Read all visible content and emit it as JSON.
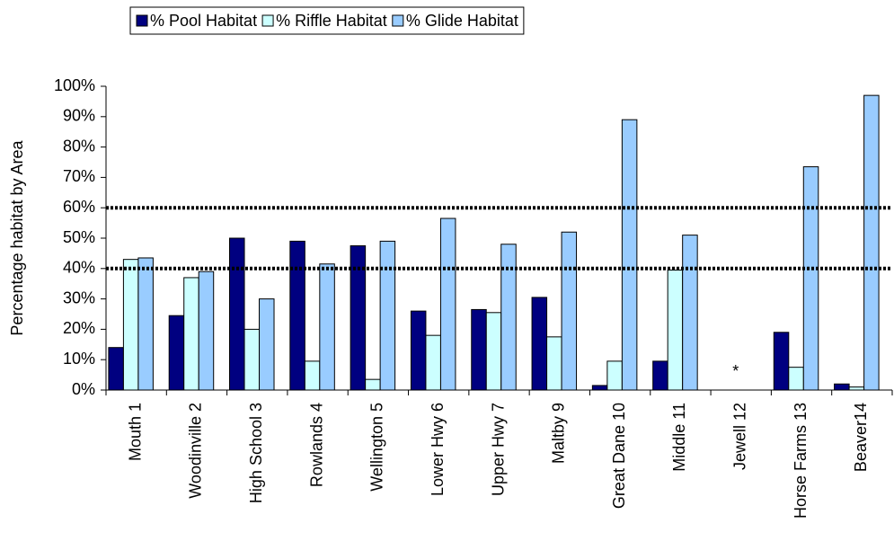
{
  "chart_data": {
    "type": "bar",
    "y_label": "Percentage habitat by Area",
    "categories": [
      "Mouth 1",
      "Woodinville 2",
      "High School 3",
      "Rowlands 4",
      "Wellington 5",
      "Lower Hwy 6",
      "Upper Hwy 7",
      "Maltby 9",
      "Great Dane 10",
      "Middle 11",
      "Jewell 12",
      "Horse Farms 13",
      "Beaver14"
    ],
    "series": [
      {
        "name": "% Pool Habitat",
        "color": "#000080",
        "values": [
          14,
          24.5,
          50,
          49,
          47.5,
          26,
          26.5,
          30.5,
          1.5,
          9.5,
          null,
          19,
          2
        ]
      },
      {
        "name": "% Riffle Habitat",
        "color": "#ccffff",
        "values": [
          43,
          37,
          20,
          9.5,
          3.5,
          18,
          25.5,
          17.5,
          9.5,
          39.5,
          null,
          7.5,
          1
        ]
      },
      {
        "name": "% Glide Habitat",
        "color": "#99ccff",
        "values": [
          43.5,
          39,
          30,
          41.5,
          49,
          56.5,
          48,
          52,
          89,
          51,
          null,
          73.5,
          97
        ]
      }
    ],
    "ylim": [
      0,
      100
    ],
    "yticks": [
      {
        "value": 0,
        "label": "0%"
      },
      {
        "value": 10,
        "label": "10%"
      },
      {
        "value": 20,
        "label": "20%"
      },
      {
        "value": 30,
        "label": "30%"
      },
      {
        "value": 40,
        "label": "40%"
      },
      {
        "value": 50,
        "label": "50%"
      },
      {
        "value": 60,
        "label": "60%"
      },
      {
        "value": 70,
        "label": "70%"
      },
      {
        "value": 80,
        "label": "80%"
      },
      {
        "value": 90,
        "label": "90%"
      },
      {
        "value": 100,
        "label": "100%"
      }
    ],
    "reference_lines": [
      40,
      60
    ],
    "annotations": [
      {
        "text": "*",
        "category_index": 10,
        "value": 7
      }
    ],
    "legend": "top"
  }
}
